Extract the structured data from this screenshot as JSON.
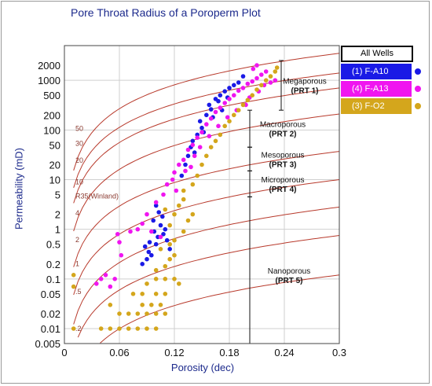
{
  "chart_data": {
    "type": "scatter",
    "title": "Pore Throat Radius of a Poroperm Plot",
    "xlabel": "Porosity (dec)",
    "ylabel": "Permeability (mD)",
    "xlim": [
      0,
      0.3
    ],
    "ylim": [
      0.005,
      5000
    ],
    "y_scale": "log",
    "x_ticks": [
      "0",
      "0.06",
      "0.12",
      "0.18",
      "0.24",
      "0.3"
    ],
    "x_tick_values": [
      0,
      0.06,
      0.12,
      0.18,
      0.24,
      0.3
    ],
    "y_ticks": [
      "2000",
      "1000",
      "500",
      "200",
      "100",
      "50",
      "20",
      "10",
      "5",
      "2",
      "1",
      "0.5",
      "0.2",
      "0.1",
      "0.05",
      "0.02",
      "0.01",
      "0.005"
    ],
    "y_tick_values": [
      2000,
      1000,
      500,
      200,
      100,
      50,
      20,
      10,
      5,
      2,
      1,
      0.5,
      0.2,
      0.1,
      0.05,
      0.02,
      0.01,
      0.005
    ],
    "grid": true,
    "legend": {
      "placement": "right",
      "header": "All Wells",
      "entries": [
        {
          "label": "(1) F-A10",
          "color": "#1a1ae6"
        },
        {
          "label": "(4) F-A13",
          "color": "#f015f0"
        },
        {
          "label": "(3) F-O2",
          "color": "#d4a61c"
        }
      ]
    },
    "r35_curve_labels": [
      {
        "label": "50",
        "x": 0.012,
        "y": 95
      },
      {
        "label": "30",
        "x": 0.012,
        "y": 48
      },
      {
        "label": "20",
        "x": 0.012,
        "y": 22
      },
      {
        "label": "10",
        "x": 0.012,
        "y": 8
      },
      {
        "label": "R35(Winland)",
        "x": 0.012,
        "y": 4.2
      },
      {
        "label": "4",
        "x": 0.012,
        "y": 1.9
      },
      {
        "label": "2",
        "x": 0.012,
        "y": 0.55
      },
      {
        "label": "1",
        "x": 0.012,
        "y": 0.18
      },
      {
        "label": ".5",
        "x": 0.012,
        "y": 0.05
      },
      {
        "label": ".2",
        "x": 0.012,
        "y": 0.009
      }
    ],
    "r35_curves": [
      {
        "r35": 50,
        "k_at_0_05": 200,
        "k_at_0_30": 3500
      },
      {
        "r35": 30,
        "k_at_0_05": 85,
        "k_at_0_30": 1400
      },
      {
        "r35": 20,
        "k_at_0_05": 42,
        "k_at_0_30": 700
      },
      {
        "r35": 10,
        "k_at_0_05": 12,
        "k_at_0_30": 210
      },
      {
        "r35": 4,
        "k_at_0_05": 2.2,
        "k_at_0_30": 37
      },
      {
        "r35": 2,
        "k_at_0_05": 0.6,
        "k_at_0_30": 10
      },
      {
        "r35": 1,
        "k_at_0_05": 0.16,
        "k_at_0_30": 2.8
      },
      {
        "r35": 0.5,
        "k_at_0_05": 0.045,
        "k_at_0_30": 0.75
      },
      {
        "r35": 0.2,
        "k_at_0_05": 0.0075,
        "k_at_0_30": 0.12
      }
    ],
    "zones": [
      {
        "line1": "Megaporous",
        "line2": "(PRT 1)",
        "k_top": 2500,
        "k_bottom": 250
      },
      {
        "line1": "Macroporous",
        "line2": "(PRT 2)",
        "k_top": 250,
        "k_bottom": 45
      },
      {
        "line1": "Mesoporous",
        "line2": "(PRT 3)",
        "k_top": 45,
        "k_bottom": 15
      },
      {
        "line1": "Microporous",
        "line2": "(PRT 4)",
        "k_top": 15,
        "k_bottom": 4.5
      },
      {
        "line1": "Nanoporous",
        "line2": "(PRT 5)",
        "k_top": 4.5,
        "k_bottom": 0.005
      }
    ],
    "series": [
      {
        "name": "(1) F-A10",
        "color": "#1a1ae6",
        "points": [
          [
            0.09,
            0.25
          ],
          [
            0.088,
            0.45
          ],
          [
            0.093,
            0.55
          ],
          [
            0.095,
            0.3
          ],
          [
            0.1,
            0.5
          ],
          [
            0.102,
            0.7
          ],
          [
            0.098,
            0.9
          ],
          [
            0.105,
            1.2
          ],
          [
            0.108,
            0.8
          ],
          [
            0.097,
            1.5
          ],
          [
            0.103,
            2.2
          ],
          [
            0.1,
            3.0
          ],
          [
            0.11,
            1.0
          ],
          [
            0.112,
            0.6
          ],
          [
            0.107,
            1.8
          ],
          [
            0.115,
            0.4
          ],
          [
            0.085,
            0.2
          ],
          [
            0.092,
            0.35
          ],
          [
            0.128,
            12
          ],
          [
            0.132,
            20
          ],
          [
            0.135,
            30
          ],
          [
            0.14,
            60
          ],
          [
            0.138,
            45
          ],
          [
            0.145,
            80
          ],
          [
            0.15,
            110
          ],
          [
            0.148,
            150
          ],
          [
            0.155,
            200
          ],
          [
            0.16,
            260
          ],
          [
            0.158,
            320
          ],
          [
            0.165,
            420
          ],
          [
            0.17,
            500
          ],
          [
            0.168,
            380
          ],
          [
            0.175,
            600
          ],
          [
            0.18,
            700
          ],
          [
            0.178,
            450
          ],
          [
            0.185,
            800
          ],
          [
            0.172,
            250
          ],
          [
            0.162,
            180
          ],
          [
            0.152,
            90
          ],
          [
            0.142,
            35
          ],
          [
            0.19,
            900
          ],
          [
            0.195,
            1200
          ]
        ]
      },
      {
        "name": "(4) F-A13",
        "color": "#f015f0",
        "points": [
          [
            0.035,
            0.08
          ],
          [
            0.04,
            0.1
          ],
          [
            0.045,
            0.12
          ],
          [
            0.05,
            0.07
          ],
          [
            0.055,
            0.1
          ],
          [
            0.06,
            0.55
          ],
          [
            0.058,
            0.8
          ],
          [
            0.062,
            0.3
          ],
          [
            0.072,
            0.9
          ],
          [
            0.08,
            1.0
          ],
          [
            0.085,
            1.3
          ],
          [
            0.09,
            2.0
          ],
          [
            0.1,
            3.5
          ],
          [
            0.108,
            5
          ],
          [
            0.112,
            8
          ],
          [
            0.118,
            10
          ],
          [
            0.12,
            14
          ],
          [
            0.122,
            6
          ],
          [
            0.125,
            20
          ],
          [
            0.13,
            25
          ],
          [
            0.135,
            40
          ],
          [
            0.14,
            50
          ],
          [
            0.138,
            18
          ],
          [
            0.145,
            70
          ],
          [
            0.15,
            90
          ],
          [
            0.155,
            130
          ],
          [
            0.16,
            170
          ],
          [
            0.165,
            230
          ],
          [
            0.17,
            280
          ],
          [
            0.175,
            350
          ],
          [
            0.18,
            420
          ],
          [
            0.185,
            500
          ],
          [
            0.19,
            620
          ],
          [
            0.195,
            700
          ],
          [
            0.2,
            850
          ],
          [
            0.205,
            950
          ],
          [
            0.21,
            1100
          ],
          [
            0.215,
            1300
          ],
          [
            0.22,
            1500
          ],
          [
            0.218,
            800
          ],
          [
            0.212,
            600
          ],
          [
            0.202,
            450
          ],
          [
            0.198,
            320
          ],
          [
            0.188,
            250
          ],
          [
            0.178,
            180
          ],
          [
            0.168,
            120
          ],
          [
            0.158,
            75
          ],
          [
            0.148,
            45
          ],
          [
            0.142,
            30
          ],
          [
            0.132,
            15
          ],
          [
            0.225,
            900
          ],
          [
            0.23,
            1000
          ],
          [
            0.206,
            1700
          ],
          [
            0.21,
            2000
          ],
          [
            0.095,
            0.9
          ],
          [
            0.105,
            0.7
          ]
        ]
      },
      {
        "name": "(3) F-O2",
        "color": "#d4a61c",
        "points": [
          [
            0.01,
            0.01
          ],
          [
            0.04,
            0.01
          ],
          [
            0.05,
            0.01
          ],
          [
            0.06,
            0.01
          ],
          [
            0.07,
            0.01
          ],
          [
            0.08,
            0.01
          ],
          [
            0.09,
            0.01
          ],
          [
            0.1,
            0.01
          ],
          [
            0.07,
            0.02
          ],
          [
            0.08,
            0.02
          ],
          [
            0.09,
            0.02
          ],
          [
            0.1,
            0.02
          ],
          [
            0.11,
            0.02
          ],
          [
            0.085,
            0.03
          ],
          [
            0.095,
            0.03
          ],
          [
            0.105,
            0.03
          ],
          [
            0.075,
            0.05
          ],
          [
            0.085,
            0.05
          ],
          [
            0.1,
            0.05
          ],
          [
            0.11,
            0.05
          ],
          [
            0.09,
            0.08
          ],
          [
            0.1,
            0.1
          ],
          [
            0.11,
            0.1
          ],
          [
            0.12,
            0.1
          ],
          [
            0.125,
            0.08
          ],
          [
            0.1,
            0.15
          ],
          [
            0.11,
            0.18
          ],
          [
            0.115,
            0.25
          ],
          [
            0.12,
            0.3
          ],
          [
            0.105,
            0.4
          ],
          [
            0.115,
            0.5
          ],
          [
            0.12,
            0.6
          ],
          [
            0.115,
            1.2
          ],
          [
            0.12,
            2.0
          ],
          [
            0.125,
            3.0
          ],
          [
            0.13,
            4.0
          ],
          [
            0.135,
            1.5
          ],
          [
            0.13,
            0.9
          ],
          [
            0.11,
            2.5
          ],
          [
            0.14,
            2.0
          ],
          [
            0.13,
            6
          ],
          [
            0.14,
            8
          ],
          [
            0.145,
            12
          ],
          [
            0.15,
            20
          ],
          [
            0.155,
            30
          ],
          [
            0.16,
            45
          ],
          [
            0.165,
            60
          ],
          [
            0.17,
            80
          ],
          [
            0.175,
            120
          ],
          [
            0.18,
            150
          ],
          [
            0.185,
            200
          ],
          [
            0.19,
            250
          ],
          [
            0.195,
            320
          ],
          [
            0.2,
            400
          ],
          [
            0.205,
            500
          ],
          [
            0.21,
            650
          ],
          [
            0.215,
            800
          ],
          [
            0.22,
            1000
          ],
          [
            0.225,
            1200
          ],
          [
            0.23,
            1500
          ],
          [
            0.232,
            1800
          ],
          [
            0.01,
            0.07
          ],
          [
            0.01,
            0.12
          ],
          [
            0.06,
            0.02
          ],
          [
            0.05,
            0.03
          ]
        ]
      }
    ]
  }
}
